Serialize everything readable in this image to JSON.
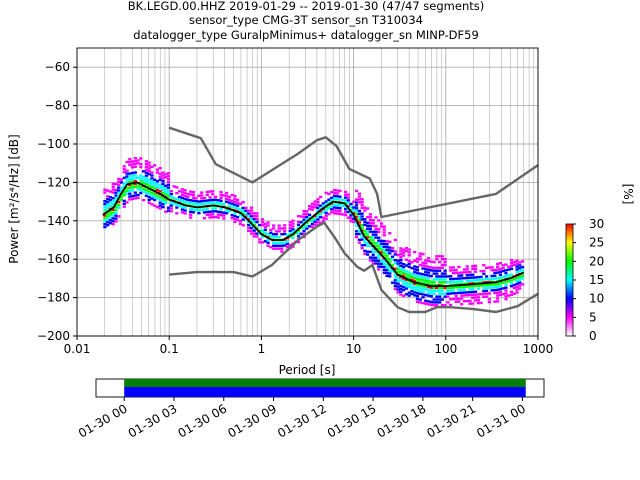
{
  "chart_data": [
    {
      "type": "heatmap",
      "title_lines": [
        "BK.LEGD.00.HHZ   2019-01-29 -- 2019-01-30  (47/47 segments)",
        "sensor_type CMG-3T sensor_sn T310034",
        "datalogger_type GuralpMinimus+ datalogger_sn MINP-DF59"
      ],
      "xlabel": "Period [s]",
      "ylabel": "Power [m²/s⁴/Hz] [dB]",
      "xscale": "log",
      "xlim": [
        0.01,
        1000
      ],
      "ylim": [
        -200,
        -50
      ],
      "xticks": [
        0.01,
        0.1,
        1,
        10,
        100,
        1000
      ],
      "xtick_labels": [
        "0.01",
        "0.1",
        "1",
        "10",
        "100",
        "1000"
      ],
      "yticks": [
        -200,
        -180,
        -160,
        -140,
        -120,
        -100,
        -80,
        -60
      ],
      "ytick_labels": [
        "−200",
        "−180",
        "−160",
        "−140",
        "−120",
        "−100",
        "−80",
        "−60"
      ],
      "grid": true,
      "colorbar": {
        "label": "[%]",
        "range": [
          0,
          30
        ],
        "ticks": [
          0,
          5,
          10,
          15,
          20,
          25,
          30
        ],
        "colors": [
          "#ffffff",
          "#ff00ff",
          "#0000ff",
          "#00ffff",
          "#00ff00",
          "#ffff00",
          "#ff0000"
        ]
      },
      "series": [
        {
          "name": "",
          "role": "mode",
          "color": "#000000",
          "points": [
            [
              0.019,
              -137
            ],
            [
              0.025,
              -133
            ],
            [
              0.03,
              -126
            ],
            [
              0.035,
              -121
            ],
            [
              0.045,
              -120
            ],
            [
              0.06,
              -123
            ],
            [
              0.08,
              -126
            ],
            [
              0.1,
              -129
            ],
            [
              0.15,
              -132
            ],
            [
              0.2,
              -133
            ],
            [
              0.3,
              -132
            ],
            [
              0.4,
              -133
            ],
            [
              0.6,
              -136
            ],
            [
              0.8,
              -142
            ],
            [
              1.0,
              -147
            ],
            [
              1.3,
              -150
            ],
            [
              1.7,
              -150
            ],
            [
              2.2,
              -147
            ],
            [
              3,
              -141
            ],
            [
              4.5,
              -134
            ],
            [
              6,
              -130
            ],
            [
              8,
              -131
            ],
            [
              10,
              -137
            ],
            [
              13,
              -148
            ],
            [
              17,
              -154
            ],
            [
              22,
              -160
            ],
            [
              30,
              -168
            ],
            [
              45,
              -172
            ],
            [
              70,
              -174
            ],
            [
              100,
              -174
            ],
            [
              200,
              -173
            ],
            [
              350,
              -172
            ],
            [
              500,
              -170
            ],
            [
              700,
              -167
            ]
          ]
        },
        {
          "name": "",
          "role": "noise-model-high",
          "color": "#666666",
          "points": [
            [
              0.1,
              -91.5
            ],
            [
              0.22,
              -97
            ],
            [
              0.32,
              -110.5
            ],
            [
              0.8,
              -120
            ],
            [
              2.5,
              -105
            ],
            [
              4.0,
              -98
            ],
            [
              5.0,
              -96.5
            ],
            [
              6.5,
              -101
            ],
            [
              9,
              -113
            ],
            [
              15,
              -118
            ],
            [
              18,
              -126
            ],
            [
              20,
              -138
            ],
            [
              350,
              -126
            ],
            [
              1000,
              -111
            ]
          ]
        },
        {
          "name": "",
          "role": "noise-model-low",
          "color": "#666666",
          "points": [
            [
              0.1,
              -168
            ],
            [
              0.2,
              -166.7
            ],
            [
              0.5,
              -166.7
            ],
            [
              0.8,
              -169
            ],
            [
              1.3,
              -163
            ],
            [
              2.5,
              -150
            ],
            [
              4,
              -143
            ],
            [
              4.8,
              -141
            ],
            [
              6.3,
              -149
            ],
            [
              8,
              -157
            ],
            [
              11,
              -164
            ],
            [
              13,
              -166
            ],
            [
              16,
              -163
            ],
            [
              20,
              -176
            ],
            [
              30,
              -185
            ],
            [
              40,
              -187.5
            ],
            [
              60,
              -187.5
            ],
            [
              80,
              -185
            ],
            [
              110,
              -185
            ],
            [
              200,
              -186
            ],
            [
              350,
              -187.5
            ],
            [
              600,
              -184.5
            ],
            [
              1000,
              -178
            ]
          ]
        }
      ]
    },
    {
      "type": "timeline",
      "tick_labels": [
        "01-30 00",
        "01-30 03",
        "01-30 06",
        "01-30 09",
        "01-30 12",
        "01-30 15",
        "01-30 18",
        "01-30 21",
        "01-31 00"
      ],
      "tick_hours": [
        0,
        3,
        6,
        9,
        12,
        15,
        18,
        21,
        24
      ],
      "coverage_start_hour": 0,
      "coverage_end_hour": 24.2,
      "colors": {
        "data": "#0000ff",
        "gaps_ok": "#008000"
      }
    }
  ]
}
